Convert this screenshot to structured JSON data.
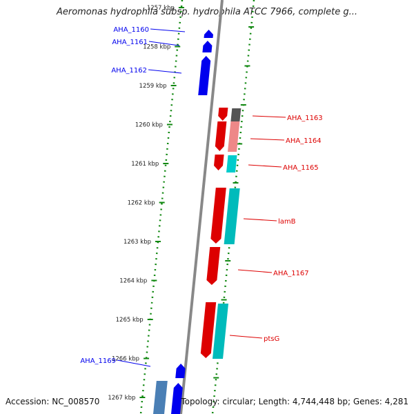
{
  "title": "Aeromonas hydrophila subsp. hydrophila ATCC 7966, complete g...",
  "footer": {
    "accession": "Accession: NC_008570",
    "summary": "Topology: circular; Length: 4,744,448 bp; Genes: 4,281"
  },
  "colors": {
    "forward": "#0000ee",
    "reverse": "#dd0000",
    "cyan": "#00cccc",
    "tick": "#118811",
    "axis": "#888888"
  },
  "ticks": [
    {
      "label": "1257 kbp"
    },
    {
      "label": "1258 kbp"
    },
    {
      "label": "1259 kbp"
    },
    {
      "label": "1260 kbp"
    },
    {
      "label": "1261 kbp"
    },
    {
      "label": "1262 kbp"
    },
    {
      "label": "1263 kbp"
    },
    {
      "label": "1264 kbp"
    },
    {
      "label": "1265 kbp"
    },
    {
      "label": "1266 kbp"
    },
    {
      "label": "1267 kbp"
    }
  ],
  "genes": [
    {
      "name": "AHA_1160",
      "strand": "forward"
    },
    {
      "name": "AHA_1161",
      "strand": "forward"
    },
    {
      "name": "AHA_1162",
      "strand": "forward"
    },
    {
      "name": "AHA_1163",
      "strand": "reverse"
    },
    {
      "name": "AHA_1164",
      "strand": "reverse"
    },
    {
      "name": "AHA_1165",
      "strand": "reverse"
    },
    {
      "name": "lamB",
      "strand": "reverse"
    },
    {
      "name": "AHA_1167",
      "strand": "reverse"
    },
    {
      "name": "ptsG",
      "strand": "reverse"
    },
    {
      "name": "AHA_1169",
      "strand": "forward"
    }
  ]
}
